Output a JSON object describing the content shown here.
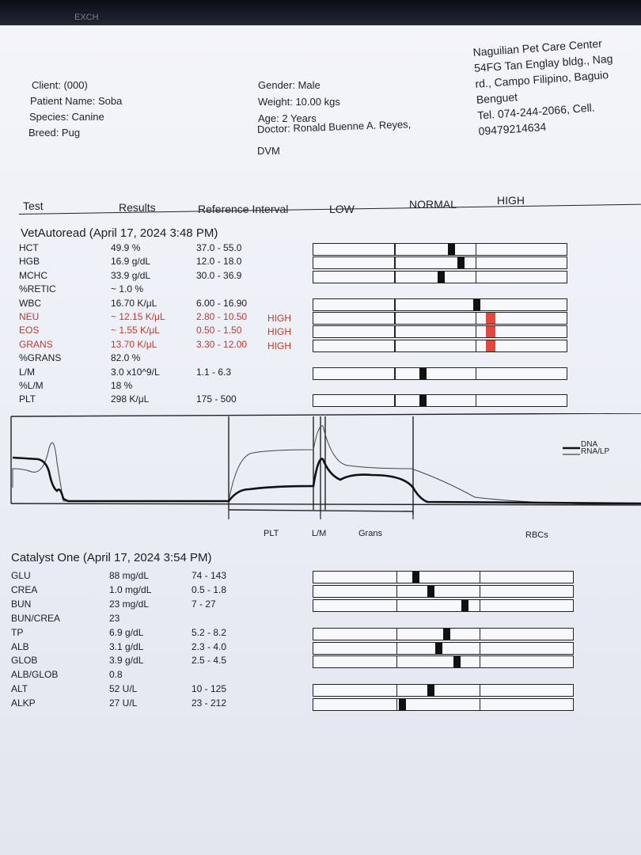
{
  "header": {
    "exch": "EXCH",
    "client": "Client:  (000)",
    "patient": "Patient Name: Soba",
    "species": "Species: Canine",
    "breed": "Breed: Pug",
    "gender": "Gender: Male",
    "weight": "Weight: 10.00 kgs",
    "age": "Age: 2 Years",
    "doctor_line1": "Doctor: Ronald Buenne A. Reyes,",
    "doctor_line2": "DVM",
    "clinic_lines": [
      "Naguilian Pet Care Center",
      "54FG Tan Englay bldg., Nag",
      "rd., Campo Filipino, Baguio",
      "Benguet",
      "Tel. 074-244-2066,       Cell.",
      "09479214634"
    ]
  },
  "columns": {
    "test": "Test",
    "results": "Results",
    "reference": "Reference Interval",
    "low": "LOW",
    "normal": "NORMAL",
    "high": "HIGH"
  },
  "vet": {
    "title": "VetAutoread (April 17, 2024 3:48 PM)",
    "rows": [
      {
        "test": "HCT",
        "result": "49.9 %",
        "ref": "37.0 - 55.0",
        "flag": "",
        "red": false,
        "marker": 0.53,
        "group": 1
      },
      {
        "test": "HGB",
        "result": "16.9 g/dL",
        "ref": "12.0 - 18.0",
        "flag": "",
        "red": false,
        "marker": 0.57,
        "group": 1
      },
      {
        "test": "MCHC",
        "result": "33.9 g/dL",
        "ref": "30.0 - 36.9",
        "flag": "",
        "red": false,
        "marker": 0.49,
        "group": 1
      },
      {
        "test": "%RETIC",
        "result": "~ 1.0 %",
        "ref": "",
        "flag": "",
        "red": false,
        "marker": null,
        "group": 0
      },
      {
        "test": "WBC",
        "result": "16.70 K/μL",
        "ref": "6.00 - 16.90",
        "flag": "",
        "red": false,
        "marker": 0.63,
        "group": 2
      },
      {
        "test": "NEU",
        "result": "~ 12.15 K/μL",
        "ref": "2.80 - 10.50",
        "flag": "HIGH",
        "red": true,
        "marker": 0.68,
        "group": 2
      },
      {
        "test": "EOS",
        "result": "~ 1.55 K/μL",
        "ref": "0.50 - 1.50",
        "flag": "HIGH",
        "red": true,
        "marker": 0.68,
        "group": 2
      },
      {
        "test": "GRANS",
        "result": "13.70 K/μL",
        "ref": "3.30 - 12.00",
        "flag": "HIGH",
        "red": true,
        "marker": 0.68,
        "group": 2
      },
      {
        "test": "%GRANS",
        "result": "82.0 %",
        "ref": "",
        "flag": "",
        "red": false,
        "marker": null,
        "group": 0
      },
      {
        "test": "L/M",
        "result": "3.0 x10^9/L",
        "ref": "1.1 - 6.3",
        "flag": "",
        "red": false,
        "marker": 0.42,
        "group": 3
      },
      {
        "test": "%L/M",
        "result": "18 %",
        "ref": "",
        "flag": "",
        "red": false,
        "marker": null,
        "group": 0
      },
      {
        "test": "PLT",
        "result": "298 K/μL",
        "ref": "175 - 500",
        "flag": "",
        "red": false,
        "marker": 0.42,
        "group": 4
      }
    ]
  },
  "histogram": {
    "legend_dna": "DNA",
    "legend_rna": "RNA/LP",
    "labels": [
      "PLT",
      "L/M",
      "Grans",
      "RBCs"
    ]
  },
  "catalyst": {
    "title": "Catalyst One (April 17, 2024 3:54 PM)",
    "rows": [
      {
        "test": "GLU",
        "result": "88 mg/dL",
        "ref": "74 - 143",
        "marker": 0.38,
        "group": 1
      },
      {
        "test": "CREA",
        "result": "1.0 mg/dL",
        "ref": "0.5 - 1.8",
        "marker": 0.44,
        "group": 1
      },
      {
        "test": "BUN",
        "result": "23 mg/dL",
        "ref": "7 - 27",
        "marker": 0.57,
        "group": 1
      },
      {
        "test": "BUN/CREA",
        "result": "23",
        "ref": "",
        "marker": null,
        "group": 0
      },
      {
        "test": "TP",
        "result": "6.9 g/dL",
        "ref": "5.2 - 8.2",
        "marker": 0.5,
        "group": 2
      },
      {
        "test": "ALB",
        "result": "3.1 g/dL",
        "ref": "2.3 - 4.0",
        "marker": 0.47,
        "group": 2
      },
      {
        "test": "GLOB",
        "result": "3.9 g/dL",
        "ref": "2.5 - 4.5",
        "marker": 0.54,
        "group": 2
      },
      {
        "test": "ALB/GLOB",
        "result": "0.8",
        "ref": "",
        "marker": null,
        "group": 0
      },
      {
        "test": "ALT",
        "result": "52 U/L",
        "ref": "10 - 125",
        "marker": 0.44,
        "group": 3
      },
      {
        "test": "ALKP",
        "result": "27 U/L",
        "ref": "23 - 212",
        "marker": 0.33,
        "group": 3
      }
    ]
  }
}
